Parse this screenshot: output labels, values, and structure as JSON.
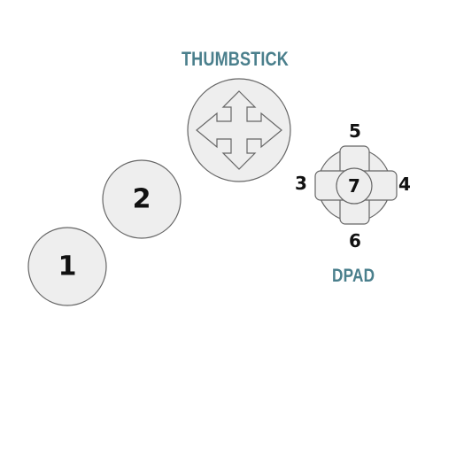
{
  "labels": {
    "thumbstick": "THUMBSTICK",
    "dpad": "DPAD"
  },
  "buttons": {
    "button_1": "1",
    "button_2": "2"
  },
  "dpad": {
    "up": "5",
    "down": "6",
    "left": "3",
    "right": "4",
    "center": "7"
  },
  "colors": {
    "label": "#4a7f8c",
    "fill": "#eeeeee",
    "stroke": "#666666",
    "text": "#111111"
  },
  "icons": {
    "thumbstick": "four-way-arrow-icon",
    "dpad": "dpad-cross-icon"
  }
}
